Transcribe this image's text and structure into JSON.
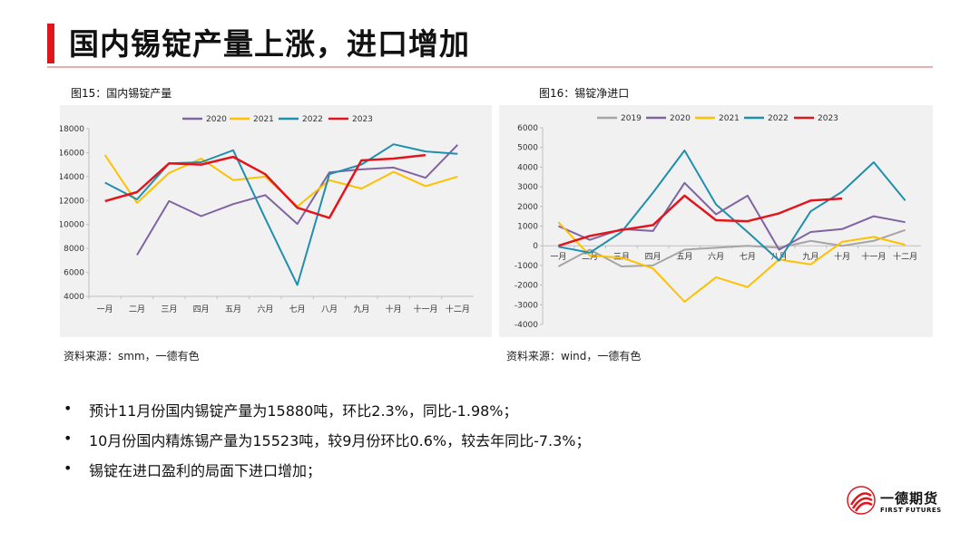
{
  "title": "国内锡锭产量上涨，进口增加",
  "colors": {
    "accent": "#e0161d"
  },
  "chart_data": [
    {
      "type": "line",
      "title": "图15：国内锡锭产量",
      "source": "资料来源：smm，一德有色",
      "categories": [
        "一月",
        "二月",
        "三月",
        "四月",
        "五月",
        "六月",
        "七月",
        "八月",
        "九月",
        "十月",
        "十一月",
        "十二月"
      ],
      "ylim": [
        4000,
        18000
      ],
      "yticks": [
        4000,
        6000,
        8000,
        10000,
        12000,
        14000,
        16000,
        18000
      ],
      "grid": false,
      "legend": "top",
      "series": [
        {
          "name": "2020",
          "color": "#8064a2",
          "values": [
            null,
            7450,
            11950,
            10700,
            11700,
            12450,
            10050,
            14350,
            14600,
            14750,
            13900,
            16650
          ]
        },
        {
          "name": "2021",
          "color": "#ffc000",
          "values": [
            15800,
            11800,
            14300,
            15500,
            13700,
            14000,
            11500,
            13700,
            13000,
            14400,
            13200,
            14000
          ]
        },
        {
          "name": "2022",
          "color": "#1f8fae",
          "values": [
            13500,
            12100,
            15100,
            15200,
            16200,
            10500,
            4950,
            14200,
            15000,
            16700,
            16100,
            15900
          ]
        },
        {
          "name": "2023",
          "color": "#e0161d",
          "values": [
            11950,
            12700,
            15100,
            15000,
            15650,
            14200,
            11400,
            10550,
            15350,
            15500,
            15800,
            null
          ]
        }
      ]
    },
    {
      "type": "line",
      "title": "图16：锡锭净进口",
      "source": "资料来源：wind，一德有色",
      "categories": [
        "一月",
        "二月",
        "三月",
        "四月",
        "五月",
        "六月",
        "七月",
        "八月",
        "九月",
        "十月",
        "十一月",
        "十二月"
      ],
      "ylim": [
        -4000,
        6000
      ],
      "yticks": [
        -4000,
        -3000,
        -2000,
        -1000,
        0,
        1000,
        2000,
        3000,
        4000,
        5000,
        6000
      ],
      "grid": false,
      "legend": "top",
      "series": [
        {
          "name": "2019",
          "color": "#a5a5a5",
          "values": [
            -1050,
            -200,
            -1050,
            -1000,
            -200,
            -100,
            0,
            -100,
            250,
            0,
            250,
            800
          ]
        },
        {
          "name": "2020",
          "color": "#8064a2",
          "values": [
            1000,
            300,
            850,
            750,
            3200,
            1600,
            2550,
            -200,
            700,
            850,
            1500,
            1200
          ]
        },
        {
          "name": "2021",
          "color": "#ffc000",
          "values": [
            1200,
            -500,
            -600,
            -1150,
            -2850,
            -1600,
            -2100,
            -700,
            -950,
            200,
            450,
            50
          ]
        },
        {
          "name": "2022",
          "color": "#1f8fae",
          "values": [
            -50,
            -350,
            700,
            2700,
            4850,
            2100,
            700,
            -750,
            1750,
            2750,
            4250,
            2300
          ]
        },
        {
          "name": "2023",
          "color": "#e0161d",
          "values": [
            0,
            500,
            800,
            1050,
            2550,
            1300,
            1250,
            1650,
            2300,
            2400,
            null,
            null
          ]
        }
      ]
    }
  ],
  "bullets": [
    "预计11月份国内锡锭产量为15880吨，环比2.3%，同比-1.98%；",
    "10月份国内精炼锡产量为15523吨，较9月份环比0.6%，较去年同比-7.3%；",
    "锡锭在进口盈利的局面下进口增加；"
  ],
  "bullet_symbol": "•",
  "logo": {
    "name": "一德期货",
    "sub": "FIRST FUTURES"
  }
}
